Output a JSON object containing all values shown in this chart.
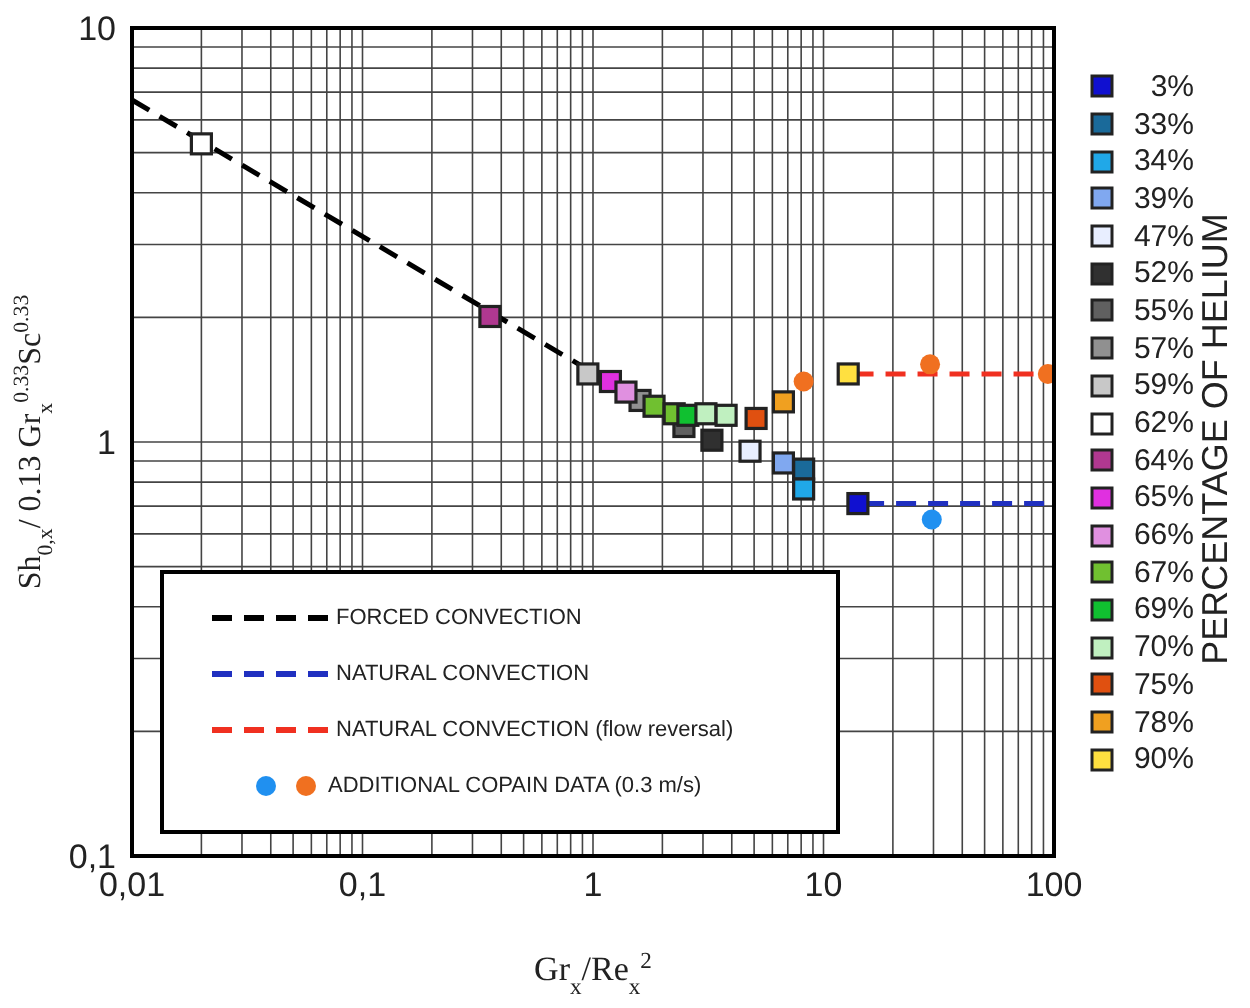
{
  "chart_data": {
    "type": "scatter",
    "xlabel": "Gr$_{x}$/Re$_{x}$$^{2}$",
    "ylabel": "Sh$_{0,x}$/ 0.13 Gr$_{x}$$^{0.33}$Sc$^{0.33}$",
    "legend_title": "PERCENTAGE OF HELIUM",
    "log": "xy",
    "grid": true,
    "legend": "right",
    "xlim": [
      0.01,
      100
    ],
    "ylim": [
      0.1,
      10
    ],
    "xticks": [
      {
        "value": 0.01,
        "label": "0,01"
      },
      {
        "value": 0.02,
        "label": null
      },
      {
        "value": 0.03,
        "label": null
      },
      {
        "value": 0.04,
        "label": null
      },
      {
        "value": 0.05,
        "label": null
      },
      {
        "value": 0.06,
        "label": null
      },
      {
        "value": 0.07,
        "label": null
      },
      {
        "value": 0.08,
        "label": null
      },
      {
        "value": 0.09,
        "label": null
      },
      {
        "value": 0.1,
        "label": "0,1"
      },
      {
        "value": 0.2,
        "label": null
      },
      {
        "value": 0.3,
        "label": null
      },
      {
        "value": 0.4,
        "label": null
      },
      {
        "value": 0.5,
        "label": null
      },
      {
        "value": 0.6,
        "label": null
      },
      {
        "value": 0.7,
        "label": null
      },
      {
        "value": 0.8,
        "label": null
      },
      {
        "value": 0.9,
        "label": null
      },
      1,
      {
        "value": 2,
        "label": null
      },
      {
        "value": 3,
        "label": null
      },
      {
        "value": 4,
        "label": null
      },
      {
        "value": 5,
        "label": null
      },
      {
        "value": 6,
        "label": null
      },
      {
        "value": 7,
        "label": null
      },
      {
        "value": 8,
        "label": null
      },
      {
        "value": 9,
        "label": null
      },
      10,
      {
        "value": 20,
        "label": null
      },
      {
        "value": 30,
        "label": null
      },
      {
        "value": 40,
        "label": null
      },
      {
        "value": 50,
        "label": null
      },
      {
        "value": 60,
        "label": null
      },
      {
        "value": 70,
        "label": null
      },
      {
        "value": 80,
        "label": null
      },
      {
        "value": 90,
        "label": null
      },
      100
    ],
    "yticks": [
      {
        "value": 0.1,
        "label": "0,1"
      },
      {
        "value": 0.2,
        "label": null
      },
      {
        "value": 0.3,
        "label": null
      },
      {
        "value": 0.4,
        "label": null
      },
      {
        "value": 0.5,
        "label": null
      },
      {
        "value": 0.6,
        "label": null
      },
      {
        "value": 0.7,
        "label": null
      },
      {
        "value": 0.8,
        "label": null
      },
      {
        "value": 0.9,
        "label": null
      },
      1,
      {
        "value": 2,
        "label": null
      },
      {
        "value": 3,
        "label": null
      },
      {
        "value": 4,
        "label": null
      },
      {
        "value": 5,
        "label": null
      },
      {
        "value": 6,
        "label": null
      },
      {
        "value": 7,
        "label": null
      },
      {
        "value": 8,
        "label": null
      },
      {
        "value": 9,
        "label": null
      },
      10
    ],
    "series": [
      {
        "name": "FORCED CONVECTION",
        "type": "line",
        "line_style": "dashed",
        "marker": "none",
        "color": "#000000",
        "x": [
          0.01,
          1
        ],
        "values": [
          6.7,
          1.47
        ]
      },
      {
        "name": "NATURAL CONVECTION",
        "type": "line",
        "line_style": "dashed",
        "marker": "none",
        "color": "#2030c0",
        "x": [
          15,
          100
        ],
        "values": [
          0.71,
          0.71
        ]
      },
      {
        "name": "NATURAL CONVECTION (flow reversal)",
        "type": "line",
        "line_style": "dashed",
        "marker": "none",
        "color": "#f03020",
        "x": [
          13.5,
          100
        ],
        "values": [
          1.46,
          1.46
        ]
      },
      {
        "name": "ADDITIONAL COPAIN DATA (0.3 m/s)",
        "marker": "circle",
        "color": "#f07020",
        "x": [
          8.2,
          29,
          94
        ],
        "values": [
          1.4,
          1.54,
          1.46
        ]
      },
      {
        "marker": "circle",
        "color": "#2090f0",
        "x": [
          29.5
        ],
        "values": [
          0.65
        ]
      },
      {
        "name": "3%",
        "marker": "square",
        "color": "#1010d0",
        "x": [
          14.1
        ],
        "values": [
          0.71
        ]
      },
      {
        "name": "33%",
        "marker": "square",
        "color": "#1a6a9a",
        "x": [
          8.2
        ],
        "values": [
          0.86
        ]
      },
      {
        "name": "34%",
        "marker": "square",
        "color": "#20a8e8",
        "x": [
          8.2
        ],
        "values": [
          0.77
        ]
      },
      {
        "name": "39%",
        "marker": "square",
        "color": "#80a8f0",
        "x": [
          6.7
        ],
        "values": [
          0.89
        ]
      },
      {
        "name": "47%",
        "marker": "square",
        "color": "#e8eeff",
        "x": [
          4.8
        ],
        "values": [
          0.95
        ]
      },
      {
        "name": "52%",
        "marker": "square",
        "color": "#303030",
        "x": [
          3.28
        ],
        "values": [
          1.01
        ]
      },
      {
        "name": "55%",
        "marker": "square",
        "color": "#606060",
        "x": [
          2.48
        ],
        "values": [
          1.09
        ]
      },
      {
        "name": "57%",
        "marker": "square",
        "color": "#909090",
        "x": [
          1.6
        ],
        "values": [
          1.26
        ]
      },
      {
        "name": "59%",
        "marker": "square",
        "color": "#c8c8c8",
        "x": [
          0.95
        ],
        "values": [
          1.46
        ]
      },
      {
        "name": "62%",
        "marker": "square",
        "color": "#ffffff",
        "x": [
          0.02
        ],
        "values": [
          5.25
        ]
      },
      {
        "name": "64%",
        "marker": "square",
        "color": "#b03890",
        "x": [
          0.357
        ],
        "values": [
          2.01
        ]
      },
      {
        "name": "65%",
        "marker": "square",
        "color": "#e030e0",
        "x": [
          1.19
        ],
        "values": [
          1.4
        ]
      },
      {
        "name": "66%",
        "marker": "square",
        "color": "#e090e0",
        "x": [
          1.39
        ],
        "values": [
          1.32
        ]
      },
      {
        "name": "67%",
        "marker": "square",
        "color": "#70c030",
        "x": [
          1.84,
          2.25
        ],
        "values": [
          1.22,
          1.17
        ]
      },
      {
        "name": "69%",
        "marker": "square",
        "color": "#10c030",
        "x": [
          2.58
        ],
        "values": [
          1.16
        ]
      },
      {
        "name": "70%",
        "marker": "square",
        "color": "#c0f0c0",
        "x": [
          3.09,
          3.78
        ],
        "values": [
          1.17,
          1.16
        ]
      },
      {
        "name": "75%",
        "marker": "square",
        "color": "#e05010",
        "x": [
          5.1
        ],
        "values": [
          1.14
        ]
      },
      {
        "name": "78%",
        "marker": "square",
        "color": "#f0a020",
        "x": [
          6.7
        ],
        "values": [
          1.25
        ]
      },
      {
        "name": "90%",
        "marker": "square",
        "color": "#ffe040",
        "x": [
          12.8
        ],
        "values": [
          1.46
        ]
      }
    ]
  }
}
